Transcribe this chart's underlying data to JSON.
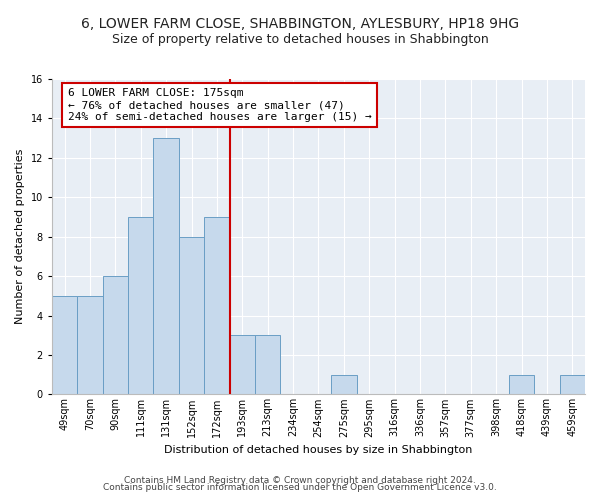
{
  "title1": "6, LOWER FARM CLOSE, SHABBINGTON, AYLESBURY, HP18 9HG",
  "title2": "Size of property relative to detached houses in Shabbington",
  "xlabel": "Distribution of detached houses by size in Shabbington",
  "ylabel": "Number of detached properties",
  "bin_labels": [
    "49sqm",
    "70sqm",
    "90sqm",
    "111sqm",
    "131sqm",
    "152sqm",
    "172sqm",
    "193sqm",
    "213sqm",
    "234sqm",
    "254sqm",
    "275sqm",
    "295sqm",
    "316sqm",
    "336sqm",
    "357sqm",
    "377sqm",
    "398sqm",
    "418sqm",
    "439sqm",
    "459sqm"
  ],
  "bar_values": [
    5,
    5,
    6,
    9,
    13,
    8,
    9,
    3,
    3,
    0,
    0,
    1,
    0,
    0,
    0,
    0,
    0,
    0,
    1,
    0,
    1
  ],
  "bar_color": "#c6d9ec",
  "bar_edge_color": "#6a9ec5",
  "red_line_bin": 6,
  "annotation_line1": "6 LOWER FARM CLOSE: 175sqm",
  "annotation_line2": "← 76% of detached houses are smaller (47)",
  "annotation_line3": "24% of semi-detached houses are larger (15) →",
  "annotation_box_facecolor": "#ffffff",
  "annotation_box_edgecolor": "#cc0000",
  "ylim": [
    0,
    16
  ],
  "yticks": [
    0,
    2,
    4,
    6,
    8,
    10,
    12,
    14,
    16
  ],
  "footnote1": "Contains HM Land Registry data © Crown copyright and database right 2024.",
  "footnote2": "Contains public sector information licensed under the Open Government Licence v3.0.",
  "fig_facecolor": "#ffffff",
  "ax_facecolor": "#e8eef5",
  "grid_color": "#ffffff",
  "title_fontsize": 10,
  "subtitle_fontsize": 9,
  "axis_label_fontsize": 8,
  "tick_fontsize": 7,
  "annotation_fontsize": 8,
  "footnote_fontsize": 6.5
}
